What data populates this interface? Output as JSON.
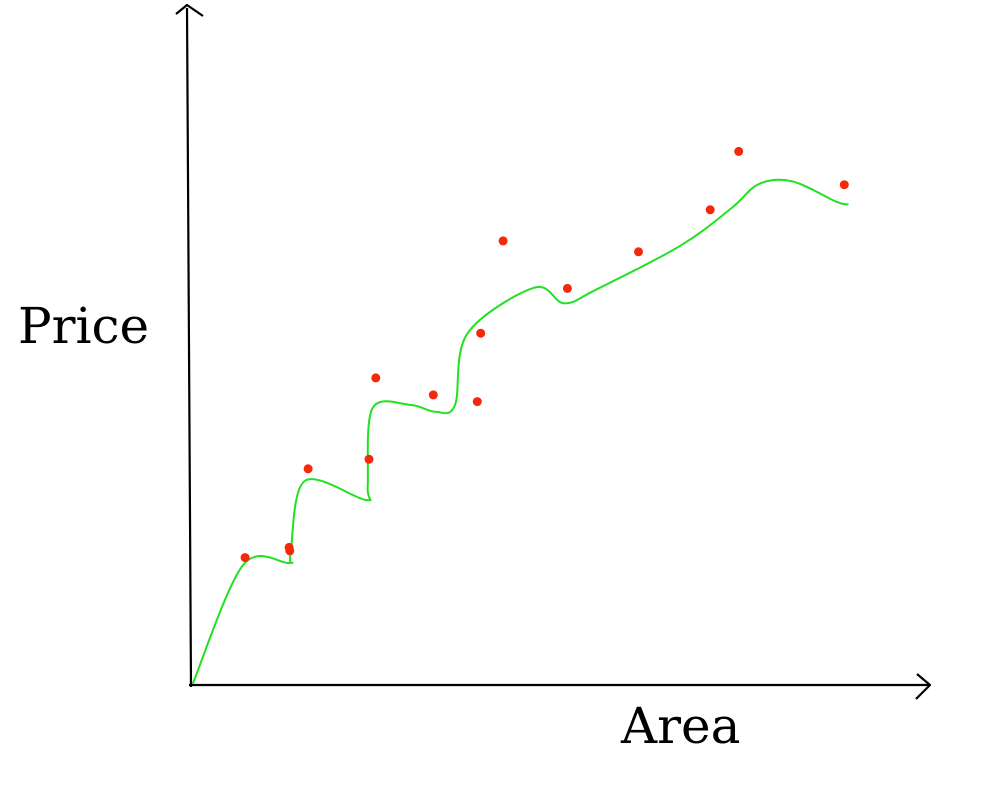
{
  "chart_data": {
    "type": "line",
    "title": "",
    "xlabel": "Area",
    "ylabel": "Price",
    "xlim": [
      0,
      100
    ],
    "ylim": [
      0,
      100
    ],
    "grid": false,
    "legend": "none",
    "x_ticks": [],
    "y_ticks": [],
    "series": [
      {
        "values_x": [
          0,
          7.4,
          14.2,
          14.4,
          16.5,
          25.5,
          25.8,
          26.5,
          32.2,
          35.8,
          38.7,
          40.5,
          50.4,
          54.8,
          59.5,
          72.0,
          79.5,
          83.6,
          88.5,
          95.0,
          96.7
        ],
        "values_y": [
          0,
          17.4,
          17.7,
          19.0,
          29.8,
          27.0,
          29.0,
          40.5,
          41.0,
          40.0,
          41.0,
          51.5,
          58.3,
          56.0,
          58.0,
          64.5,
          70.0,
          73.6,
          74.0,
          71.0,
          70.6
        ],
        "markers_x": [
          7.7,
          14.3,
          14.2,
          17.0,
          26.0,
          27.0,
          35.5,
          42.0,
          42.5,
          45.8,
          55.3,
          65.8,
          76.4,
          80.6,
          96.2
        ],
        "markers_y": [
          18.5,
          19.5,
          20.0,
          31.6,
          33.0,
          45.0,
          42.5,
          41.5,
          51.6,
          65.2,
          58.2,
          63.6,
          69.8,
          78.4,
          73.5
        ]
      }
    ],
    "line_color": "#22e022",
    "marker_color": "#f4280a",
    "axis_color": "#000000"
  }
}
